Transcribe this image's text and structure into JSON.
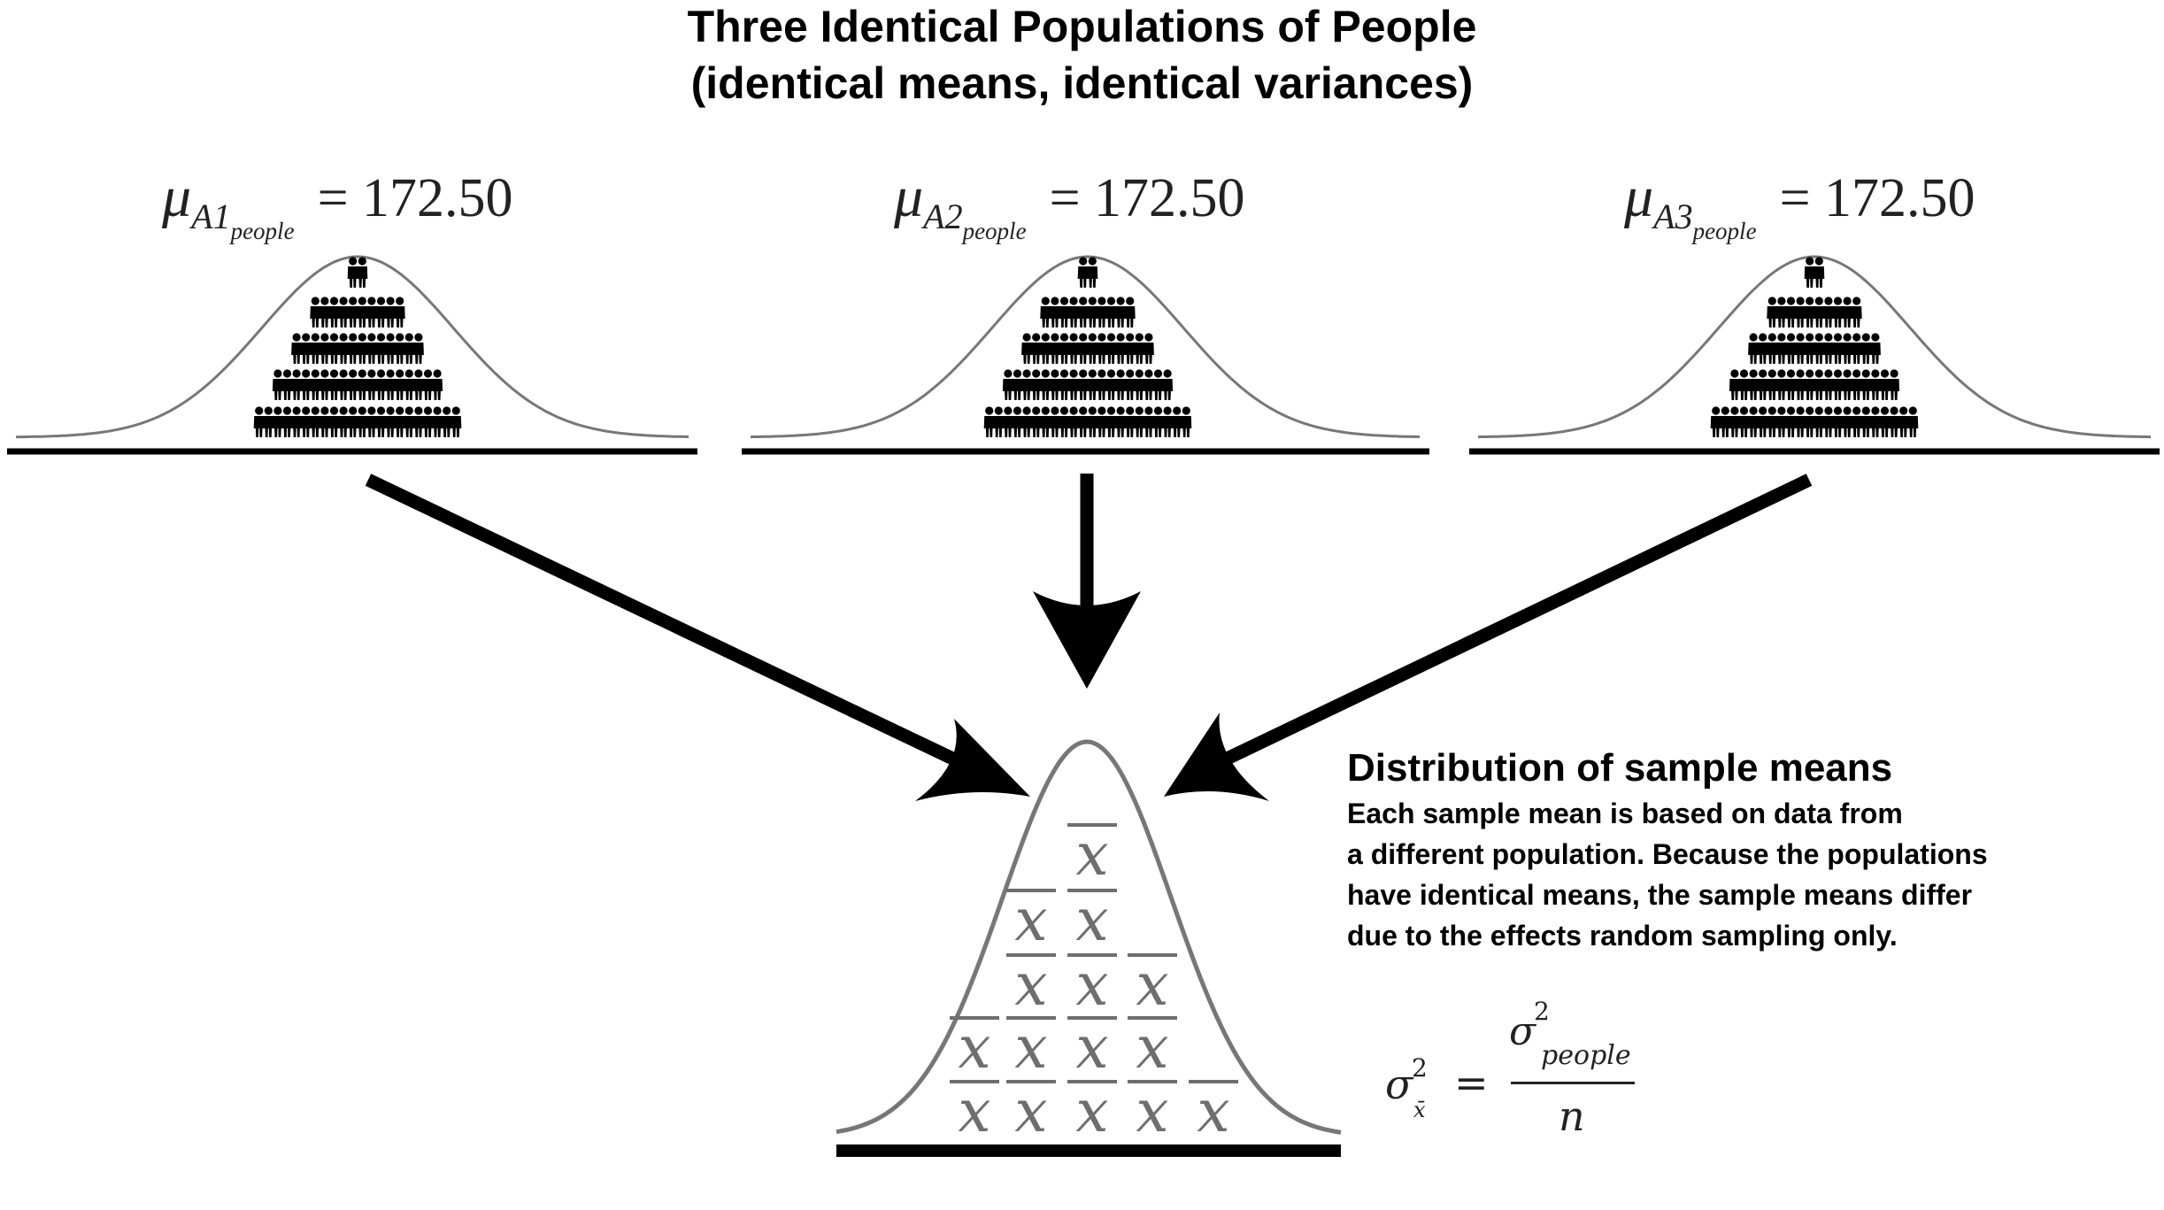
{
  "title": {
    "line1": "Three Identical Populations of People",
    "line2": "(identical means, identical variances)"
  },
  "populations": [
    {
      "symbol": "μ",
      "group": "A1",
      "subscript": "people",
      "equals": "=",
      "value": "172.50"
    },
    {
      "symbol": "μ",
      "group": "A2",
      "subscript": "people",
      "equals": "=",
      "value": "172.50"
    },
    {
      "symbol": "μ",
      "group": "A3",
      "subscript": "people",
      "equals": "=",
      "value": "172.50"
    }
  ],
  "population_rows": [
    2,
    10,
    14,
    18,
    22
  ],
  "sample_means": {
    "symbol": "x",
    "rows": [
      1,
      2,
      3,
      4,
      5
    ]
  },
  "description": {
    "heading": "Distribution of sample means",
    "lines": [
      "Each sample mean is based on data from",
      "a different population. Because the populations",
      "have identical means, the sample means differ",
      "due to the effects random sampling only."
    ]
  },
  "formula": {
    "lhs_symbol": "σ",
    "lhs_power": "2",
    "lhs_subscript": "x̄",
    "equals": "=",
    "numerator_symbol": "σ",
    "numerator_power": "2",
    "numerator_subscript": "people",
    "denominator": "n"
  },
  "colors": {
    "ink": "#000000",
    "curve": "#777777",
    "xbar": "#6e6e6e"
  }
}
